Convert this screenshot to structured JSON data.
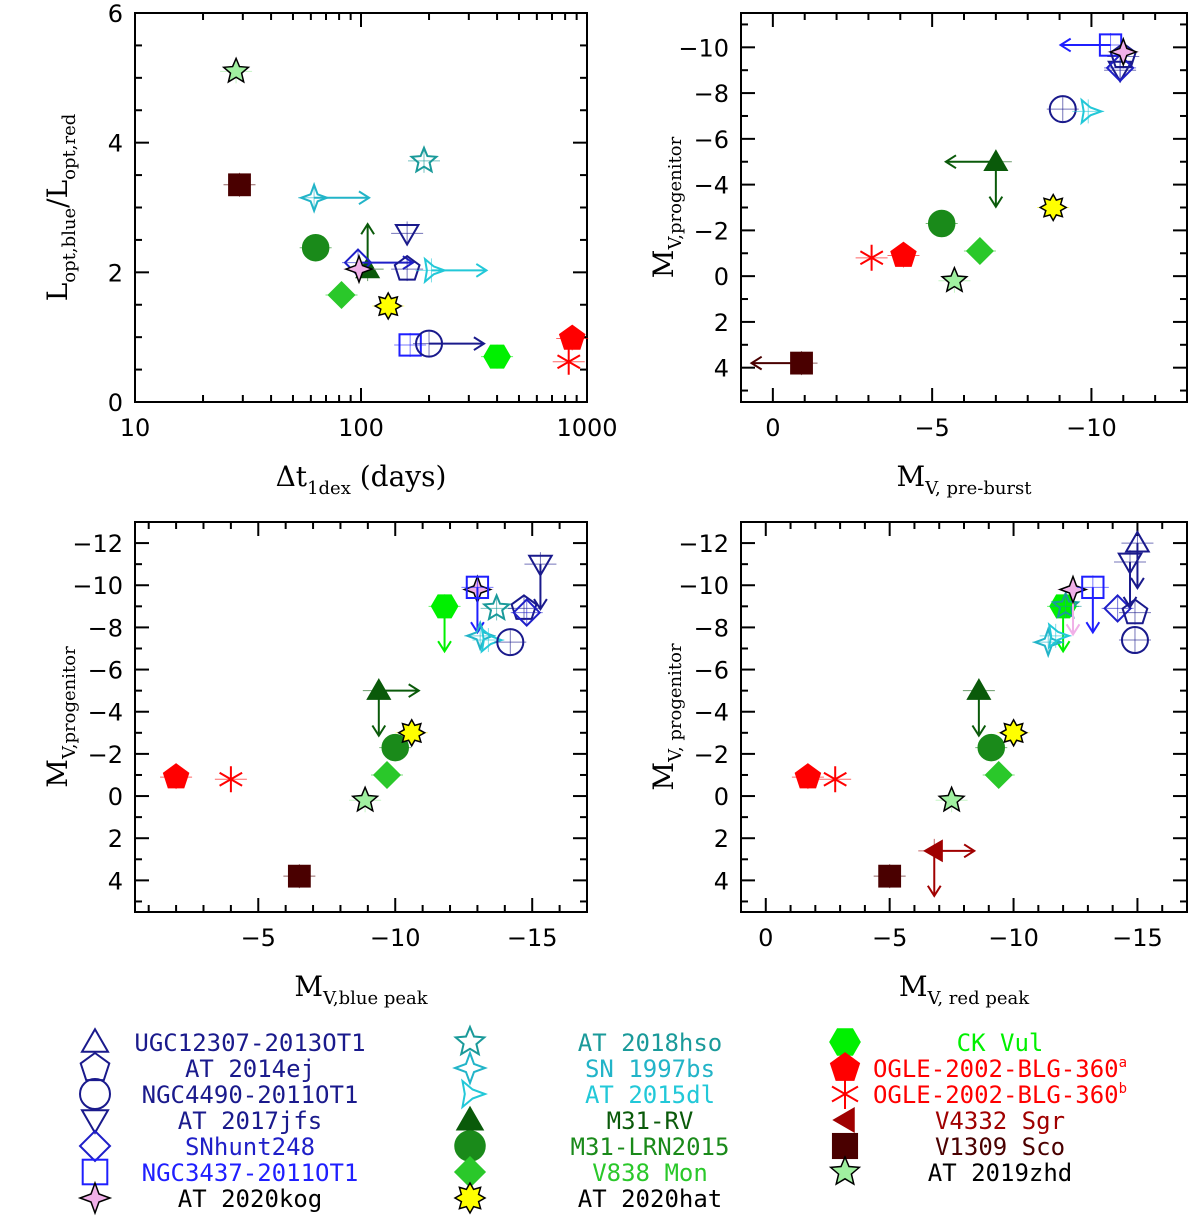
{
  "objects": [
    {
      "key": "ugc",
      "name": "UGC12307-2013OT1",
      "color": "#1a1a8c",
      "marker": "triangle-up",
      "filled": false
    },
    {
      "key": "at14",
      "name": "AT 2014ej",
      "color": "#1a1a8c",
      "marker": "pentagon",
      "filled": false
    },
    {
      "key": "ngc4490",
      "name": "NGC4490-2011OT1",
      "color": "#1a1a8c",
      "marker": "circle",
      "filled": false
    },
    {
      "key": "at17",
      "name": "AT 2017jfs",
      "color": "#1a1a8c",
      "marker": "triangle-down",
      "filled": false
    },
    {
      "key": "snh",
      "name": "SNhunt248",
      "color": "#1f1fc8",
      "marker": "diamond",
      "filled": false
    },
    {
      "key": "ngc3437",
      "name": "NGC3437-2011OT1",
      "color": "#1f1fff",
      "marker": "square",
      "filled": false
    },
    {
      "key": "kog",
      "name": "AT 2020kog",
      "color": "#f0b0e8",
      "marker": "star4",
      "filled": true
    },
    {
      "key": "hso",
      "name": "AT 2018hso",
      "color": "#1a9a9a",
      "marker": "star5-open",
      "filled": false
    },
    {
      "key": "sn97",
      "name": "SN 1997bs",
      "color": "#22b4c8",
      "marker": "star4-open",
      "filled": false
    },
    {
      "key": "at15",
      "name": "AT 2015dl",
      "color": "#22c8d8",
      "marker": "star3-open",
      "filled": false
    },
    {
      "key": "m31rv",
      "name": "M31-RV",
      "color": "#0a5a0a",
      "marker": "triangle-up",
      "filled": true
    },
    {
      "key": "m31lrn",
      "name": "M31-LRN2015",
      "color": "#1a8a1a",
      "marker": "circle",
      "filled": true
    },
    {
      "key": "v838",
      "name": "V838 Mon",
      "color": "#2ac82a",
      "marker": "diamond",
      "filled": true
    },
    {
      "key": "hat",
      "name": "AT 2020hat",
      "color": "#ffff00",
      "marker": "star8",
      "filled": true
    },
    {
      "key": "ckvul",
      "name": "CK Vul",
      "color": "#00f000",
      "marker": "hexagon",
      "filled": true
    },
    {
      "key": "ogle_a",
      "name": "OGLE-2002-BLG-360",
      "sup": "a",
      "color": "#ff0000",
      "marker": "pentagon",
      "filled": true
    },
    {
      "key": "ogle_b",
      "name": "OGLE-2002-BLG-360",
      "sup": "b",
      "color": "#ff0000",
      "marker": "asterisk",
      "filled": false
    },
    {
      "key": "v4332",
      "name": "V4332 Sgr",
      "color": "#a00000",
      "marker": "triangle-left",
      "filled": true
    },
    {
      "key": "v1309",
      "name": "V1309 Sco",
      "color": "#4a0000",
      "marker": "square",
      "filled": true
    },
    {
      "key": "zhd",
      "name": "AT 2019zhd",
      "color": "#a0f0a0",
      "marker": "star5",
      "filled": true
    }
  ],
  "chart_data": [
    {
      "type": "scatter",
      "title": "",
      "xlabel": "Δt",
      "xlabel_sub": "1dex",
      "xlabel_suffix": " (days)",
      "ylabel": "L",
      "ylabel_sub": "opt,blue",
      "ylabel_mid": "/L",
      "ylabel_sub2": "opt,red",
      "xscale": "log",
      "xlim": [
        10,
        1000
      ],
      "ylim": [
        0,
        6
      ],
      "xticks": [
        10,
        100,
        1000
      ],
      "xtick_labels": [
        "10",
        "100",
        "1000"
      ],
      "yticks": [
        0,
        2,
        4,
        6
      ],
      "ytick_labels": [
        "0",
        "2",
        "4",
        "6"
      ],
      "points": [
        {
          "obj": "zhd",
          "x": 28,
          "y": 5.1
        },
        {
          "obj": "v1309",
          "x": 29,
          "y": 3.35
        },
        {
          "obj": "hso",
          "x": 190,
          "y": 3.72
        },
        {
          "obj": "sn97",
          "x": 62,
          "y": 3.15,
          "xlimit": "lower"
        },
        {
          "obj": "m31lrn",
          "x": 63,
          "y": 2.38
        },
        {
          "obj": "at17",
          "x": 160,
          "y": 2.6
        },
        {
          "obj": "m31rv",
          "x": 107,
          "y": 2.05,
          "ylimit": "lower"
        },
        {
          "obj": "snh",
          "x": 97,
          "y": 2.15,
          "xlimit": "lower"
        },
        {
          "obj": "kog",
          "x": 98,
          "y": 2.05
        },
        {
          "obj": "at14",
          "x": 160,
          "y": 2.05
        },
        {
          "obj": "at15",
          "x": 205,
          "y": 2.03,
          "xlimit": "lower"
        },
        {
          "obj": "v838",
          "x": 82,
          "y": 1.65
        },
        {
          "obj": "hat",
          "x": 132,
          "y": 1.48
        },
        {
          "obj": "ngc3437",
          "x": 165,
          "y": 0.88
        },
        {
          "obj": "ngc4490",
          "x": 200,
          "y": 0.9,
          "xlimit": "lower"
        },
        {
          "obj": "ckvul",
          "x": 400,
          "y": 0.7
        },
        {
          "obj": "ogle_a",
          "x": 860,
          "y": 0.98
        },
        {
          "obj": "ogle_b",
          "x": 830,
          "y": 0.62
        }
      ]
    },
    {
      "type": "scatter",
      "title": "",
      "xlabel": "M",
      "xlabel_sub": "V, pre-burst",
      "ylabel": "M",
      "ylabel_sub": "V,progenitor",
      "xlim": [
        1,
        -13
      ],
      "ylim": [
        5.5,
        -11.5
      ],
      "xticks": [
        0,
        -5,
        -10
      ],
      "xtick_labels": [
        "0",
        "−5",
        "−10"
      ],
      "yticks": [
        4,
        2,
        0,
        -2,
        -4,
        -6,
        -8,
        -10
      ],
      "ytick_labels": [
        "4",
        "2",
        "0",
        "−2",
        "−4",
        "−6",
        "−8",
        "−10"
      ],
      "points": [
        {
          "obj": "v1309",
          "x": -0.9,
          "y": 3.8,
          "xlimit": "upper"
        },
        {
          "obj": "ogle_b",
          "x": -3.1,
          "y": -0.8
        },
        {
          "obj": "ogle_a",
          "x": -4.1,
          "y": -0.9
        },
        {
          "obj": "zhd",
          "x": -5.7,
          "y": 0.2
        },
        {
          "obj": "m31lrn",
          "x": -5.3,
          "y": -2.3
        },
        {
          "obj": "v838",
          "x": -6.5,
          "y": -1.1
        },
        {
          "obj": "m31rv",
          "x": -7.0,
          "y": -5.0,
          "ylimit": "lower",
          "xlimit": "upper"
        },
        {
          "obj": "hat",
          "x": -8.8,
          "y": -3.0
        },
        {
          "obj": "ngc4490",
          "x": -9.1,
          "y": -7.3
        },
        {
          "obj": "at15",
          "x": -9.9,
          "y": -7.2
        },
        {
          "obj": "ngc3437",
          "x": -10.6,
          "y": -10.1,
          "xlimit": "upper"
        },
        {
          "obj": "at17",
          "x": -10.9,
          "y": -9.0
        },
        {
          "obj": "snh",
          "x": -10.9,
          "y": -9.1
        },
        {
          "obj": "at14",
          "x": -11.0,
          "y": -9.6
        },
        {
          "obj": "kog",
          "x": -11.0,
          "y": -9.8
        }
      ]
    },
    {
      "type": "scatter",
      "title": "",
      "xlabel": "M",
      "xlabel_sub": "V,blue peak",
      "ylabel": "M",
      "ylabel_sub": "V,progenitor",
      "xlim": [
        -0.5,
        -17
      ],
      "ylim": [
        5.5,
        -13
      ],
      "xticks": [
        -5,
        -10,
        -15
      ],
      "xtick_labels": [
        "−5",
        "−10",
        "−15"
      ],
      "yticks": [
        4,
        2,
        0,
        -2,
        -4,
        -6,
        -8,
        -10,
        -12
      ],
      "ytick_labels": [
        "4",
        "2",
        "0",
        "−2",
        "−4",
        "−6",
        "−8",
        "−10",
        "−12"
      ],
      "points": [
        {
          "obj": "ogle_a",
          "x": -2.0,
          "y": -0.9
        },
        {
          "obj": "ogle_b",
          "x": -4.0,
          "y": -0.8
        },
        {
          "obj": "v1309",
          "x": -6.5,
          "y": 3.8
        },
        {
          "obj": "zhd",
          "x": -8.9,
          "y": 0.2
        },
        {
          "obj": "v838",
          "x": -9.7,
          "y": -1.0
        },
        {
          "obj": "m31lrn",
          "x": -10.0,
          "y": -2.3
        },
        {
          "obj": "m31rv",
          "x": -9.4,
          "y": -5.0,
          "xlimit": "lower",
          "ylimit": "lower"
        },
        {
          "obj": "hat",
          "x": -10.6,
          "y": -3.0
        },
        {
          "obj": "ckvul",
          "x": -11.8,
          "y": -9.0,
          "ylimit": "lower"
        },
        {
          "obj": "kog",
          "x": -13.0,
          "y": -9.8
        },
        {
          "obj": "ngc3437",
          "x": -13.0,
          "y": -9.9,
          "ylimit": "lower"
        },
        {
          "obj": "sn97",
          "x": -13.1,
          "y": -7.6
        },
        {
          "obj": "hso",
          "x": -13.7,
          "y": -8.9
        },
        {
          "obj": "at15",
          "x": -13.4,
          "y": -7.4
        },
        {
          "obj": "ngc4490",
          "x": -14.2,
          "y": -7.3
        },
        {
          "obj": "at14",
          "x": -14.7,
          "y": -8.9
        },
        {
          "obj": "snh",
          "x": -14.8,
          "y": -8.7
        },
        {
          "obj": "at17",
          "x": -15.3,
          "y": -11.0,
          "ylimit": "lower"
        }
      ]
    },
    {
      "type": "scatter",
      "title": "",
      "xlabel": "M",
      "xlabel_sub": "V, red peak",
      "ylabel": "M",
      "ylabel_sub": "V, progenitor",
      "xlim": [
        1,
        -17
      ],
      "ylim": [
        5.5,
        -13
      ],
      "xticks": [
        0,
        -5,
        -10,
        -15
      ],
      "xtick_labels": [
        "0",
        "−5",
        "−10",
        "−15"
      ],
      "yticks": [
        4,
        2,
        0,
        -2,
        -4,
        -6,
        -8,
        -10,
        -12
      ],
      "ytick_labels": [
        "4",
        "2",
        "0",
        "−2",
        "−4",
        "−6",
        "−8",
        "−10",
        "−12"
      ],
      "points": [
        {
          "obj": "ogle_a",
          "x": -1.7,
          "y": -0.9
        },
        {
          "obj": "ogle_b",
          "x": -2.8,
          "y": -0.8
        },
        {
          "obj": "v1309",
          "x": -5.0,
          "y": 3.8
        },
        {
          "obj": "v4332",
          "x": -6.8,
          "y": 2.6,
          "xlimit": "lower",
          "ylimit": "lower"
        },
        {
          "obj": "zhd",
          "x": -7.5,
          "y": 0.2
        },
        {
          "obj": "v838",
          "x": -9.4,
          "y": -1.0
        },
        {
          "obj": "m31lrn",
          "x": -9.1,
          "y": -2.3
        },
        {
          "obj": "m31rv",
          "x": -8.6,
          "y": -5.0,
          "ylimit": "lower"
        },
        {
          "obj": "hat",
          "x": -10.0,
          "y": -3.0
        },
        {
          "obj": "ckvul",
          "x": -12.0,
          "y": -9.0,
          "ylimit": "lower"
        },
        {
          "obj": "sn97",
          "x": -11.4,
          "y": -7.3
        },
        {
          "obj": "at15",
          "x": -11.7,
          "y": -7.6
        },
        {
          "obj": "hso",
          "x": -12.1,
          "y": -9.0
        },
        {
          "obj": "kog",
          "x": -12.4,
          "y": -9.8,
          "ylimit": "lower"
        },
        {
          "obj": "ngc3437",
          "x": -13.2,
          "y": -9.9,
          "ylimit": "lower"
        },
        {
          "obj": "snh",
          "x": -14.2,
          "y": -8.9
        },
        {
          "obj": "ngc4490",
          "x": -14.9,
          "y": -7.4
        },
        {
          "obj": "at14",
          "x": -14.9,
          "y": -8.7
        },
        {
          "obj": "at17",
          "x": -14.7,
          "y": -11.1,
          "ylimit": "lower"
        },
        {
          "obj": "ugc",
          "x": -15.0,
          "y": -12.0,
          "ylimit": "lower"
        }
      ]
    }
  ]
}
